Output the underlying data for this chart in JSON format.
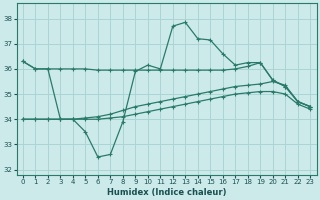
{
  "xlabel": "Humidex (Indice chaleur)",
  "bg_color": "#cceaea",
  "grid_color": "#aad4d4",
  "line_color": "#2a7a6a",
  "xlim": [
    -0.5,
    23.5
  ],
  "ylim": [
    31.8,
    38.6
  ],
  "yticks": [
    32,
    33,
    34,
    35,
    36,
    37,
    38
  ],
  "xticks": [
    0,
    1,
    2,
    3,
    4,
    5,
    6,
    7,
    8,
    9,
    10,
    11,
    12,
    13,
    14,
    15,
    16,
    17,
    18,
    19,
    20,
    21,
    22,
    23
  ],
  "s1": [
    36.3,
    36.0,
    36.0,
    34.0,
    34.0,
    33.5,
    32.5,
    32.6,
    33.9,
    35.9,
    36.15,
    36.0,
    37.7,
    37.85,
    37.2,
    37.15,
    36.6,
    36.15,
    36.25,
    36.25,
    35.55,
    35.3,
    34.7,
    34.5
  ],
  "s2": [
    36.3,
    36.0,
    36.0,
    36.0,
    36.0,
    36.0,
    35.95,
    35.95,
    35.95,
    35.95,
    35.95,
    35.95,
    35.95,
    35.95,
    35.95,
    35.95,
    35.95,
    36.0,
    36.1,
    36.25,
    35.55,
    35.3,
    34.7,
    34.5
  ],
  "s3": [
    34.0,
    34.0,
    34.0,
    34.0,
    34.0,
    34.05,
    34.1,
    34.2,
    34.35,
    34.5,
    34.6,
    34.7,
    34.8,
    34.9,
    35.0,
    35.1,
    35.2,
    35.3,
    35.35,
    35.4,
    35.5,
    35.35,
    34.7,
    34.5
  ],
  "s4": [
    34.0,
    34.0,
    34.0,
    34.0,
    34.0,
    34.0,
    34.0,
    34.05,
    34.1,
    34.2,
    34.3,
    34.4,
    34.5,
    34.6,
    34.7,
    34.8,
    34.9,
    35.0,
    35.05,
    35.1,
    35.1,
    35.0,
    34.6,
    34.4
  ]
}
